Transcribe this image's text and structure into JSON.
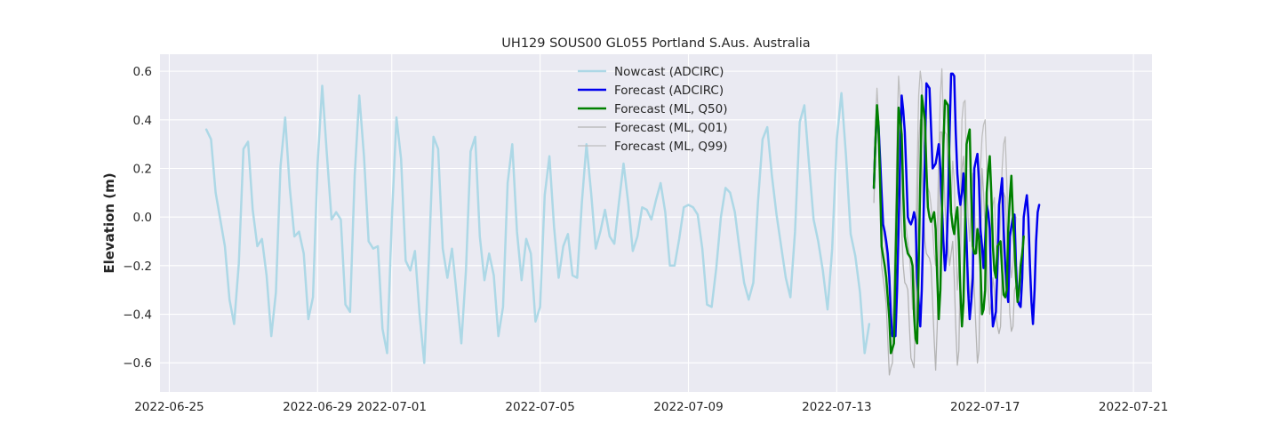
{
  "chart_data": {
    "type": "line",
    "title": "UH129 SOUS00 GL055 Portland S.Aus. Australia",
    "xlabel": "",
    "ylabel": "Elevation (m)",
    "xlim": [
      "2022-06-24T18:00",
      "2022-07-21T12:00"
    ],
    "ylim": [
      -0.72,
      0.67
    ],
    "xticks": [
      {
        "t": "2022-06-25T00:00",
        "label": "2022-06-25"
      },
      {
        "t": "2022-06-29T00:00",
        "label": "2022-06-29"
      },
      {
        "t": "2022-07-01T00:00",
        "label": "2022-07-01"
      },
      {
        "t": "2022-07-05T00:00",
        "label": "2022-07-05"
      },
      {
        "t": "2022-07-09T00:00",
        "label": "2022-07-09"
      },
      {
        "t": "2022-07-13T00:00",
        "label": "2022-07-13"
      },
      {
        "t": "2022-07-17T00:00",
        "label": "2022-07-17"
      },
      {
        "t": "2022-07-21T00:00",
        "label": "2022-07-21"
      }
    ],
    "yticks": [
      {
        "v": -0.6,
        "label": "−0.6"
      },
      {
        "v": -0.4,
        "label": "−0.4"
      },
      {
        "v": -0.2,
        "label": "−0.2"
      },
      {
        "v": 0.0,
        "label": "0.0"
      },
      {
        "v": 0.2,
        "label": "0.2"
      },
      {
        "v": 0.4,
        "label": "0.4"
      },
      {
        "v": 0.6,
        "label": "0.6"
      }
    ],
    "grid": true,
    "legend_position": "top-center",
    "series": [
      {
        "name": "Nowcast (ADCIRC)",
        "color": "#add8e6",
        "width": 2.5,
        "start": "2022-06-26T00:00",
        "step_hours": 3,
        "values": [
          0.36,
          0.32,
          0.1,
          -0.01,
          -0.12,
          -0.34,
          -0.44,
          -0.19,
          0.28,
          0.31,
          0.03,
          -0.12,
          -0.09,
          -0.24,
          -0.49,
          -0.31,
          0.21,
          0.41,
          0.12,
          -0.08,
          -0.06,
          -0.15,
          -0.42,
          -0.33,
          0.22,
          0.54,
          0.26,
          -0.01,
          0.02,
          -0.01,
          -0.36,
          -0.39,
          0.17,
          0.5,
          0.25,
          -0.1,
          -0.13,
          -0.12,
          -0.46,
          -0.56,
          -0.02,
          0.41,
          0.24,
          -0.18,
          -0.22,
          -0.14,
          -0.4,
          -0.6,
          -0.17,
          0.33,
          0.28,
          -0.13,
          -0.25,
          -0.13,
          -0.32,
          -0.52,
          -0.22,
          0.27,
          0.33,
          -0.08,
          -0.26,
          -0.15,
          -0.24,
          -0.49,
          -0.37,
          0.14,
          0.3,
          -0.06,
          -0.26,
          -0.09,
          -0.15,
          -0.43,
          -0.37,
          0.09,
          0.25,
          -0.04,
          -0.25,
          -0.12,
          -0.07,
          -0.24,
          -0.25,
          0.06,
          0.3,
          0.1,
          -0.13,
          -0.06,
          0.03,
          -0.08,
          -0.11,
          0.06,
          0.22,
          0.06,
          -0.14,
          -0.08,
          0.04,
          0.03,
          -0.01,
          0.07,
          0.14,
          0.02,
          -0.2,
          -0.2,
          -0.09,
          0.04,
          0.05,
          0.04,
          0.01,
          -0.13,
          -0.36,
          -0.37,
          -0.21,
          0.0,
          0.12,
          0.1,
          0.02,
          -0.13,
          -0.27,
          -0.34,
          -0.27,
          0.06,
          0.32,
          0.37,
          0.17,
          0.01,
          -0.12,
          -0.25,
          -0.33,
          -0.06,
          0.39,
          0.46,
          0.22,
          -0.01,
          -0.1,
          -0.22,
          -0.38,
          -0.13,
          0.32,
          0.51,
          0.25,
          -0.07,
          -0.16,
          -0.31,
          -0.56,
          -0.44
        ]
      },
      {
        "name": "Forecast (ADCIRC)",
        "color": "#0000ee",
        "width": 2.5,
        "start": "2022-07-14T00:00",
        "step_hours": 1,
        "values": [
          0.12,
          0.3,
          0.44,
          0.38,
          0.24,
          0.1,
          -0.03,
          -0.06,
          -0.1,
          -0.15,
          -0.25,
          -0.4,
          -0.49,
          -0.48,
          -0.49,
          -0.3,
          -0.05,
          0.25,
          0.5,
          0.44,
          0.35,
          0.18,
          0.0,
          -0.02,
          -0.03,
          -0.01,
          0.02,
          -0.01,
          -0.25,
          -0.35,
          -0.45,
          -0.3,
          -0.05,
          0.25,
          0.55,
          0.54,
          0.53,
          0.37,
          0.2,
          0.21,
          0.22,
          0.26,
          0.3,
          0.2,
          0.05,
          -0.1,
          -0.22,
          -0.15,
          0.05,
          0.35,
          0.59,
          0.59,
          0.58,
          0.35,
          0.18,
          0.1,
          0.05,
          0.1,
          0.18,
          0.05,
          -0.1,
          -0.3,
          -0.42,
          -0.35,
          -0.25,
          0.2,
          0.23,
          0.26,
          0.15,
          -0.05,
          -0.12,
          -0.21,
          -0.1,
          0.05,
          0.02,
          -0.05,
          -0.3,
          -0.45,
          -0.42,
          -0.39,
          -0.2,
          0.05,
          0.1,
          0.16,
          -0.05,
          -0.2,
          -0.3,
          -0.35,
          -0.08,
          -0.04,
          0.0,
          0.01,
          -0.2,
          -0.34,
          -0.36,
          -0.37,
          -0.25,
          0.0,
          0.05,
          0.09,
          0.0,
          -0.2,
          -0.35,
          -0.44,
          -0.3,
          -0.1,
          0.02,
          0.05
        ]
      },
      {
        "name": "Forecast (ML, Q50)",
        "color": "#008000",
        "width": 2.5,
        "start": "2022-07-14T00:00",
        "step_hours": 1,
        "values": [
          0.12,
          0.3,
          0.46,
          0.38,
          0.15,
          -0.12,
          -0.16,
          -0.2,
          -0.25,
          -0.33,
          -0.42,
          -0.56,
          -0.54,
          -0.52,
          -0.2,
          0.1,
          0.45,
          0.4,
          0.34,
          0.1,
          -0.08,
          -0.12,
          -0.15,
          -0.16,
          -0.17,
          -0.2,
          -0.4,
          -0.5,
          -0.52,
          -0.2,
          0.15,
          0.5,
          0.45,
          0.4,
          0.2,
          0.04,
          0.0,
          -0.02,
          0.0,
          0.02,
          -0.05,
          -0.25,
          -0.42,
          -0.3,
          0.0,
          0.3,
          0.48,
          0.47,
          0.46,
          0.2,
          0.02,
          -0.04,
          -0.07,
          0.0,
          0.04,
          -0.1,
          -0.3,
          -0.45,
          -0.35,
          -0.05,
          0.3,
          0.33,
          0.36,
          0.1,
          -0.12,
          -0.15,
          -0.15,
          -0.05,
          -0.08,
          -0.2,
          -0.4,
          -0.38,
          -0.3,
          0.1,
          0.19,
          0.25,
          0.1,
          -0.12,
          -0.22,
          -0.25,
          -0.12,
          -0.11,
          -0.1,
          -0.22,
          -0.32,
          -0.33,
          -0.3,
          -0.05,
          0.08,
          0.17,
          0.0,
          -0.12,
          -0.25,
          -0.35,
          -0.3,
          -0.2,
          -0.15,
          -0.08
        ]
      },
      {
        "name": "Forecast (ML, Q01)",
        "color": "#b4b4b4",
        "width": 1.3,
        "start": "2022-07-14T00:00",
        "step_hours": 1,
        "values": [
          0.06,
          0.25,
          0.42,
          0.3,
          0.05,
          -0.2,
          -0.25,
          -0.3,
          -0.36,
          -0.5,
          -0.65,
          -0.62,
          -0.6,
          -0.4,
          -0.1,
          0.3,
          0.4,
          0.2,
          -0.05,
          -0.2,
          -0.27,
          -0.28,
          -0.3,
          -0.45,
          -0.58,
          -0.6,
          -0.62,
          -0.4,
          -0.05,
          0.3,
          0.4,
          0.25,
          0.05,
          -0.1,
          -0.15,
          -0.16,
          -0.17,
          -0.2,
          -0.35,
          -0.5,
          -0.63,
          -0.45,
          -0.05,
          0.35,
          0.35,
          0.25,
          0.05,
          -0.05,
          -0.12,
          -0.2,
          -0.15,
          -0.1,
          -0.25,
          -0.45,
          -0.61,
          -0.55,
          -0.2,
          0.2,
          0.25,
          0.05,
          -0.1,
          -0.22,
          -0.33,
          -0.28,
          -0.2,
          -0.3,
          -0.45,
          -0.6,
          -0.55,
          -0.2,
          0.2,
          0.1,
          -0.05,
          -0.15,
          -0.3,
          -0.4,
          -0.35,
          -0.25,
          -0.3,
          -0.4,
          -0.45,
          -0.48,
          -0.45,
          -0.2,
          0.1,
          0.08,
          -0.05,
          -0.25,
          -0.4,
          -0.47,
          -0.45,
          -0.3,
          -0.28
        ]
      },
      {
        "name": "Forecast (ML, Q99)",
        "color": "#bebebe",
        "width": 1.3,
        "start": "2022-07-14T00:00",
        "step_hours": 1,
        "values": [
          0.2,
          0.38,
          0.53,
          0.42,
          0.28,
          0.05,
          -0.05,
          -0.1,
          -0.15,
          -0.22,
          -0.3,
          -0.42,
          -0.45,
          -0.3,
          0.0,
          0.35,
          0.58,
          0.48,
          0.35,
          0.15,
          0.0,
          -0.05,
          -0.1,
          -0.15,
          -0.25,
          -0.38,
          -0.35,
          -0.15,
          0.2,
          0.5,
          0.6,
          0.55,
          0.3,
          0.2,
          0.15,
          0.12,
          0.1,
          0.05,
          -0.05,
          -0.15,
          -0.2,
          -0.05,
          0.25,
          0.5,
          0.61,
          0.4,
          0.35,
          0.34,
          0.2,
          0.1,
          0.05,
          0.23,
          0.15,
          -0.1,
          -0.3,
          -0.2,
          0.05,
          0.4,
          0.47,
          0.48,
          0.2,
          0.0,
          -0.1,
          0.05,
          0.18,
          0.05,
          -0.1,
          -0.15,
          -0.05,
          0.2,
          0.33,
          0.38,
          0.4,
          0.2,
          0.0,
          -0.12,
          0.0,
          0.05,
          0.08,
          -0.1,
          -0.2,
          -0.15,
          0.0,
          0.2,
          0.3,
          0.33,
          0.15,
          -0.05,
          -0.15,
          -0.25,
          -0.2,
          -0.1,
          0.0
        ]
      }
    ]
  }
}
